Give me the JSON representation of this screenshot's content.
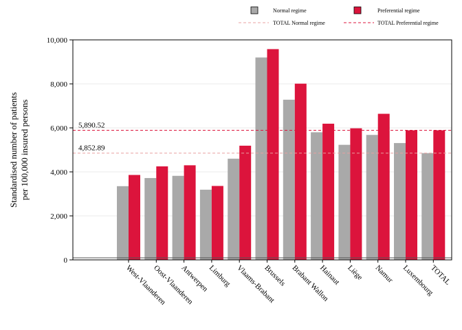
{
  "chart_data": {
    "type": "bar",
    "title": "",
    "xlabel": "",
    "ylabel_line1": "Standardised number of patients",
    "ylabel_line2": "per 100,000 insured persons",
    "ylim": [
      0,
      10000
    ],
    "yticks": [
      0,
      2000,
      4000,
      6000,
      8000,
      10000
    ],
    "ytick_labels": [
      "0",
      "2,000",
      "4,000",
      "6,000",
      "8,000",
      "10,000"
    ],
    "grid": true,
    "legend_position": "top-right",
    "categories": [
      "West-Vlaanderen",
      "Oost-Vlaanderen",
      "Antwerpen",
      "Limburg",
      "Vlaams-Brabant",
      "Brussels",
      "Brabant Wallon",
      "Hainaut",
      "Liège",
      "Namur",
      "Luxembourg",
      "TOTAL"
    ],
    "series": [
      {
        "name": "Normal regime",
        "color": "#a9a9a9",
        "values": [
          3350,
          3720,
          3820,
          3190,
          4600,
          9200,
          7280,
          5800,
          5230,
          5680,
          5310,
          4852.89
        ]
      },
      {
        "name": "Preferential regime",
        "color": "#dc143c",
        "values": [
          3860,
          4250,
          4300,
          3360,
          5190,
          9580,
          8010,
          6190,
          5980,
          6640,
          5890,
          5890.52
        ]
      }
    ],
    "reference_lines": [
      {
        "name": "TOTAL Normal regime",
        "value": 4852.89,
        "label": "4,852.89",
        "color": "#e8a0a0"
      },
      {
        "name": "TOTAL Preferential regime",
        "value": 5890.52,
        "label": "5,890.52",
        "color": "#dc143c"
      }
    ]
  }
}
